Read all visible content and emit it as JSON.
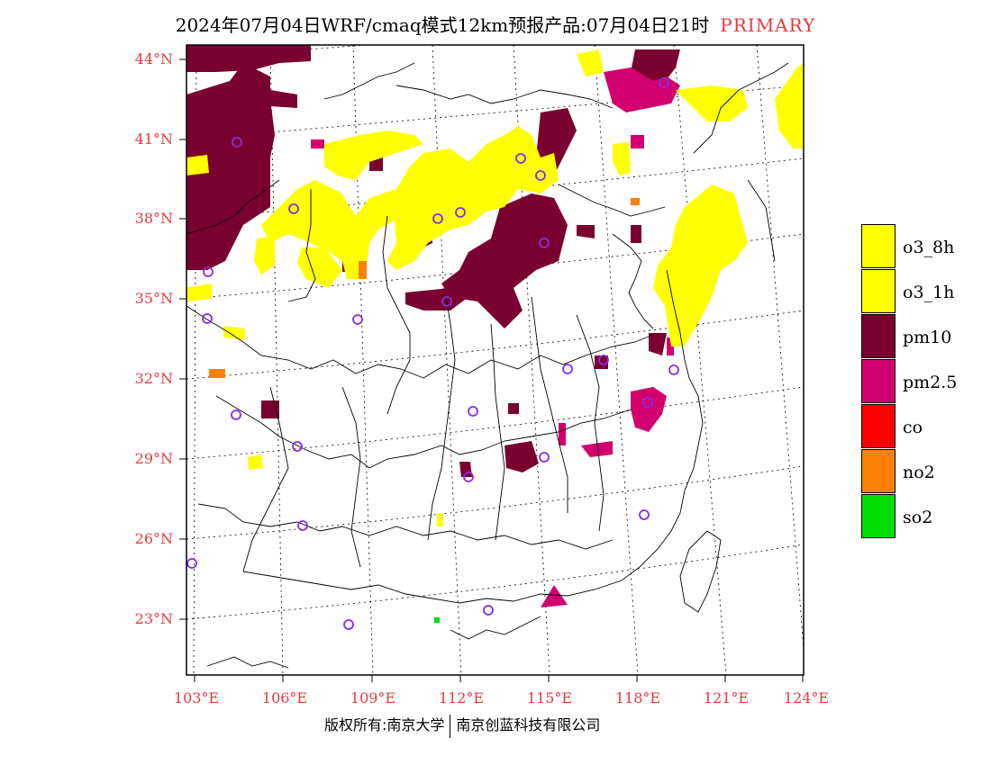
{
  "title": {
    "main": "2024年07月04日WRF/cmaq模式12km预报产品:07月04日21时",
    "tag": "PRIMARY"
  },
  "map": {
    "lat_labels": [
      "44°N",
      "41°N",
      "38°N",
      "35°N",
      "32°N",
      "29°N",
      "26°N",
      "23°N"
    ],
    "lon_labels": [
      "103°E",
      "106°E",
      "109°E",
      "112°E",
      "115°E",
      "118°E",
      "121°E",
      "124°E"
    ]
  },
  "legend": [
    {
      "label": "o3_8h",
      "color": "#ffff00"
    },
    {
      "label": "o3_1h",
      "color": "#ffff00"
    },
    {
      "label": "pm10",
      "color": "#7a0030"
    },
    {
      "label": "pm2.5",
      "color": "#d2006e"
    },
    {
      "label": "co",
      "color": "#ff0000"
    },
    {
      "label": "no2",
      "color": "#ff7f00"
    },
    {
      "label": "so2",
      "color": "#00dd00"
    }
  ],
  "colors": {
    "label_red": "#e8393c",
    "station_circle": "#8a2be2"
  },
  "footer": {
    "left": "版权所有:南京大学",
    "right": "南京创蓝科技有限公司"
  }
}
